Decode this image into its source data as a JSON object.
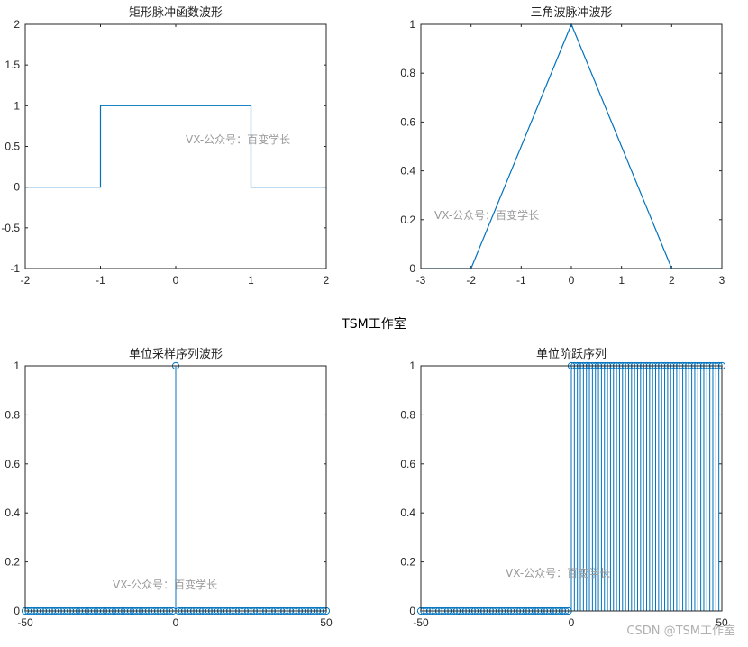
{
  "figure": {
    "suptitle": "TSM工作室",
    "credit": "CSDN @TSM工作室",
    "series_color": "#0072BD"
  },
  "chart_data": [
    {
      "type": "line",
      "title": "矩形脉冲函数波形",
      "xlim": [
        -2,
        2
      ],
      "ylim": [
        -1,
        2
      ],
      "xticks": [
        "-2",
        "-1",
        "0",
        "1",
        "2"
      ],
      "yticks": [
        "-1",
        "-0.5",
        "0",
        "0.5",
        "1",
        "1.5",
        "2"
      ],
      "x": [
        -2,
        -1,
        -1,
        1,
        1,
        2
      ],
      "y": [
        0,
        0,
        1,
        1,
        0,
        0
      ],
      "watermark": "VX-公众号：百变学长",
      "grid": false
    },
    {
      "type": "line",
      "title": "三角波脉冲波形",
      "xlim": [
        -3,
        3
      ],
      "ylim": [
        0,
        1
      ],
      "xticks": [
        "-3",
        "-2",
        "-1",
        "0",
        "1",
        "2",
        "3"
      ],
      "yticks": [
        "0",
        "0.2",
        "0.4",
        "0.6",
        "0.8",
        "1"
      ],
      "x": [
        -3,
        -2,
        0,
        2,
        3
      ],
      "y": [
        0,
        0,
        1,
        0,
        0
      ],
      "watermark": "VX-公众号：百变学长",
      "grid": false
    },
    {
      "type": "scatter",
      "style": "stem",
      "title": "单位采样序列波形",
      "xlim": [
        -50,
        50
      ],
      "ylim": [
        0,
        1
      ],
      "xticks": [
        "-50",
        "0",
        "50"
      ],
      "yticks": [
        "0",
        "0.2",
        "0.4",
        "0.6",
        "0.8",
        "1"
      ],
      "n_range": [
        -50,
        50
      ],
      "y_rule": "1 at n = 0, otherwise 0",
      "watermark": "VX-公众号：百变学长",
      "grid": false
    },
    {
      "type": "scatter",
      "style": "stem",
      "title": "单位阶跃序列",
      "xlim": [
        -50,
        50
      ],
      "ylim": [
        0,
        1
      ],
      "xticks": [
        "-50",
        "0",
        "50"
      ],
      "yticks": [
        "0",
        "0.2",
        "0.4",
        "0.6",
        "0.8",
        "1"
      ],
      "n_range": [
        -50,
        50
      ],
      "y_rule": "1 for n >= 0, otherwise 0",
      "watermark": "VX-公众号：百变学长",
      "grid": false
    }
  ]
}
